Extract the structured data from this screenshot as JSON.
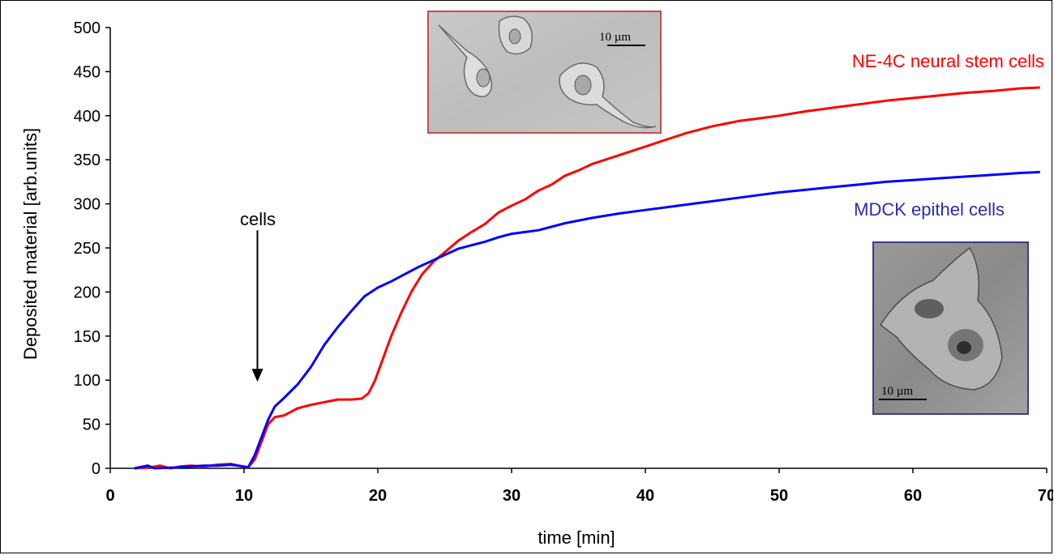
{
  "chart_data": {
    "type": "line",
    "title": "",
    "xlabel": "time [min]",
    "ylabel": "Deposited material [arb.units]",
    "xlim": [
      0,
      70
    ],
    "ylim": [
      0,
      500
    ],
    "xticks": [
      0,
      10,
      20,
      30,
      40,
      50,
      60,
      70
    ],
    "yticks": [
      0,
      50,
      100,
      150,
      200,
      250,
      300,
      350,
      400,
      450,
      500
    ],
    "grid": false,
    "legend": "inline labels",
    "series": [
      {
        "name": "NE-4C neural stem cells",
        "color": "#ff0000",
        "points": [
          [
            1.8,
            0
          ],
          [
            3,
            1
          ],
          [
            3.7,
            3
          ],
          [
            4.5,
            0
          ],
          [
            5.2,
            2
          ],
          [
            6,
            3
          ],
          [
            7,
            2
          ],
          [
            8,
            4
          ],
          [
            9,
            5
          ],
          [
            9.6,
            3
          ],
          [
            10.3,
            1
          ],
          [
            10.8,
            10
          ],
          [
            11.3,
            30
          ],
          [
            11.8,
            50
          ],
          [
            12.3,
            58
          ],
          [
            13,
            60
          ],
          [
            14,
            68
          ],
          [
            15,
            72
          ],
          [
            16,
            75
          ],
          [
            17,
            78
          ],
          [
            18,
            78
          ],
          [
            18.8,
            79
          ],
          [
            19.3,
            85
          ],
          [
            19.8,
            100
          ],
          [
            20.4,
            125
          ],
          [
            21,
            150
          ],
          [
            21.8,
            178
          ],
          [
            22.5,
            200
          ],
          [
            23.3,
            220
          ],
          [
            24.2,
            235
          ],
          [
            25,
            245
          ],
          [
            26,
            258
          ],
          [
            27,
            268
          ],
          [
            28,
            277
          ],
          [
            29,
            290
          ],
          [
            30,
            298
          ],
          [
            31,
            305
          ],
          [
            32,
            315
          ],
          [
            33,
            322
          ],
          [
            34,
            332
          ],
          [
            35,
            338
          ],
          [
            36,
            345
          ],
          [
            37,
            350
          ],
          [
            38,
            355
          ],
          [
            39,
            360
          ],
          [
            40,
            365
          ],
          [
            41,
            370
          ],
          [
            42,
            375
          ],
          [
            43,
            380
          ],
          [
            44,
            384
          ],
          [
            45,
            388
          ],
          [
            46,
            391
          ],
          [
            47,
            394
          ],
          [
            48,
            396
          ],
          [
            50,
            400
          ],
          [
            52,
            405
          ],
          [
            54,
            409
          ],
          [
            56,
            413
          ],
          [
            58,
            417
          ],
          [
            60,
            420
          ],
          [
            62,
            423
          ],
          [
            64,
            426
          ],
          [
            66,
            428
          ],
          [
            68,
            431
          ],
          [
            69.5,
            432
          ]
        ]
      },
      {
        "name": "MDCK epithel cells",
        "color": "#0000ff",
        "points": [
          [
            1.8,
            0
          ],
          [
            2.8,
            3
          ],
          [
            3.3,
            0
          ],
          [
            5,
            1
          ],
          [
            6,
            2
          ],
          [
            7,
            3
          ],
          [
            8,
            3
          ],
          [
            9,
            4
          ],
          [
            10,
            2
          ],
          [
            10.3,
            1
          ],
          [
            10.8,
            15
          ],
          [
            11.3,
            35
          ],
          [
            11.8,
            55
          ],
          [
            12.3,
            70
          ],
          [
            13,
            80
          ],
          [
            14,
            95
          ],
          [
            15,
            115
          ],
          [
            16,
            140
          ],
          [
            17,
            160
          ],
          [
            18,
            178
          ],
          [
            19,
            195
          ],
          [
            20,
            205
          ],
          [
            21,
            212
          ],
          [
            22,
            220
          ],
          [
            23,
            228
          ],
          [
            24,
            235
          ],
          [
            25,
            242
          ],
          [
            26,
            249
          ],
          [
            27,
            253
          ],
          [
            28,
            257
          ],
          [
            29,
            262
          ],
          [
            30,
            266
          ],
          [
            32,
            270
          ],
          [
            34,
            278
          ],
          [
            36,
            284
          ],
          [
            38,
            289
          ],
          [
            40,
            293
          ],
          [
            42,
            297
          ],
          [
            44,
            301
          ],
          [
            46,
            305
          ],
          [
            48,
            309
          ],
          [
            50,
            313
          ],
          [
            52,
            316
          ],
          [
            54,
            319
          ],
          [
            56,
            322
          ],
          [
            58,
            325
          ],
          [
            60,
            327
          ],
          [
            62,
            329
          ],
          [
            64,
            331
          ],
          [
            66,
            333
          ],
          [
            68,
            335
          ],
          [
            69.5,
            336
          ]
        ]
      }
    ],
    "annotations": [
      {
        "text": "cells",
        "arrow_x": 11,
        "arrow_y_from": 270,
        "arrow_y_to": 100
      }
    ]
  },
  "insets": {
    "top_micrograph": {
      "scale_label": "10 µm",
      "border_color": "#c0504d"
    },
    "bottom_micrograph": {
      "scale_label": "10 µm",
      "border_color": "#3b3b8f"
    }
  }
}
